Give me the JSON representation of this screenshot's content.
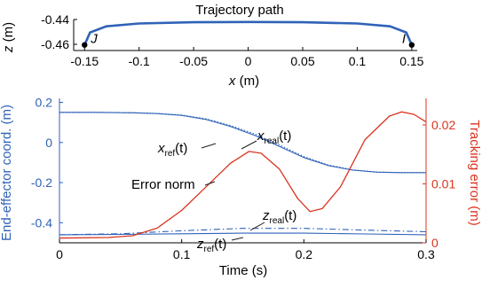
{
  "colors": {
    "primary": "#2f62b8",
    "secondary": "#d9341f",
    "axis": "#000000",
    "annotation": "#1e1e1e"
  },
  "chart_data": [
    {
      "type": "line",
      "title": "Trajectory path",
      "xlabel": "x (m)",
      "ylabel": "z (m)",
      "xlim": [
        -0.16,
        0.155
      ],
      "ylim": [
        -0.465,
        -0.44
      ],
      "xticks": [
        -0.15,
        -0.1,
        -0.05,
        0,
        0.05,
        0.1,
        0.15
      ],
      "xtick_labels": [
        "-0.15",
        "-0.1",
        "-0.05",
        "0",
        "0.05",
        "0.1",
        "0.15"
      ],
      "yticks": [
        -0.46,
        -0.44
      ],
      "ytick_labels": [
        "-0.46",
        "-0.44"
      ],
      "series": [
        {
          "color": "#2f62b8",
          "x": [
            -0.15,
            -0.145,
            -0.13,
            -0.1,
            -0.05,
            0,
            0.05,
            0.1,
            0.13,
            0.145,
            0.15
          ],
          "y": [
            -0.4605,
            -0.4505,
            -0.4455,
            -0.4432,
            -0.4422,
            -0.442,
            -0.4422,
            -0.4432,
            -0.4455,
            -0.4505,
            -0.4605
          ]
        }
      ],
      "markers": [
        {
          "x": -0.15,
          "y": -0.4605,
          "label": "J"
        },
        {
          "x": 0.15,
          "y": -0.4605,
          "label": "I"
        }
      ]
    },
    {
      "type": "line",
      "title": "",
      "xlabel": "Time (s)",
      "ylabel": "End-effector coord. (m)",
      "ylabel_right": "Tracking error (m)",
      "xlim": [
        0,
        0.3
      ],
      "ylim": [
        -0.5,
        0.22
      ],
      "ylim_right": [
        0,
        0.0245
      ],
      "xticks": [
        0,
        0.1,
        0.2,
        0.3
      ],
      "xtick_labels": [
        "0",
        "0.1",
        "0.2",
        "0.3"
      ],
      "yticks": [
        -0.4,
        -0.2,
        0,
        0.2
      ],
      "ytick_labels": [
        "-0.4",
        "-0.2",
        "0",
        "0.2"
      ],
      "yticks_right": [
        0,
        0.01,
        0.02
      ],
      "ytick_labels_right": [
        "0",
        "0.01",
        "0.02"
      ],
      "series": [
        {
          "axis": "left",
          "style": "solid",
          "color": "#2f62b8",
          "x": [
            0,
            0.03,
            0.06,
            0.08,
            0.1,
            0.12,
            0.14,
            0.16,
            0.18,
            0.2,
            0.22,
            0.24,
            0.26,
            0.28,
            0.3
          ],
          "y": [
            0.15,
            0.15,
            0.148,
            0.144,
            0.135,
            0.115,
            0.08,
            0.035,
            -0.02,
            -0.075,
            -0.115,
            -0.138,
            -0.148,
            -0.15,
            -0.15
          ]
        },
        {
          "axis": "left",
          "style": "dotted",
          "color": "#2f62b8",
          "x": [
            0,
            0.03,
            0.06,
            0.08,
            0.1,
            0.12,
            0.14,
            0.16,
            0.18,
            0.2,
            0.22,
            0.24,
            0.26,
            0.28,
            0.3
          ],
          "y": [
            0.15,
            0.15,
            0.149,
            0.145,
            0.137,
            0.118,
            0.085,
            0.042,
            -0.013,
            -0.07,
            -0.112,
            -0.136,
            -0.147,
            -0.15,
            -0.15
          ]
        },
        {
          "axis": "left",
          "style": "solid",
          "color": "#2f62b8",
          "x": [
            0,
            0.05,
            0.1,
            0.15,
            0.2,
            0.25,
            0.3
          ],
          "y": [
            -0.46,
            -0.458,
            -0.455,
            -0.452,
            -0.452,
            -0.456,
            -0.46
          ]
        },
        {
          "axis": "left",
          "style": "dashdot",
          "color": "#2f62b8",
          "x": [
            0,
            0.05,
            0.1,
            0.15,
            0.2,
            0.25,
            0.3
          ],
          "y": [
            -0.46,
            -0.455,
            -0.44,
            -0.428,
            -0.428,
            -0.437,
            -0.445
          ]
        },
        {
          "axis": "right",
          "style": "solid",
          "color": "#d9341f",
          "x": [
            0,
            0.04,
            0.06,
            0.08,
            0.1,
            0.12,
            0.14,
            0.155,
            0.165,
            0.18,
            0.195,
            0.205,
            0.215,
            0.23,
            0.25,
            0.27,
            0.28,
            0.29,
            0.3
          ],
          "y": [
            0.0008,
            0.0009,
            0.0012,
            0.0025,
            0.0055,
            0.0095,
            0.0135,
            0.0155,
            0.0152,
            0.0125,
            0.0075,
            0.0053,
            0.0058,
            0.0095,
            0.0175,
            0.0215,
            0.0222,
            0.0218,
            0.0205
          ]
        }
      ],
      "annotations": [
        {
          "name": "x-ref",
          "base": "x",
          "sub": "ref",
          "suffix": "(t)"
        },
        {
          "name": "x-real",
          "base": "x",
          "sub": "real",
          "suffix": "(t)"
        },
        {
          "name": "z-real",
          "base": "z",
          "sub": "real",
          "suffix": "(t)"
        },
        {
          "name": "z-ref",
          "base": "z",
          "sub": "ref",
          "suffix": "(t)"
        },
        {
          "name": "error-norm",
          "text": "Error norm"
        }
      ]
    }
  ]
}
